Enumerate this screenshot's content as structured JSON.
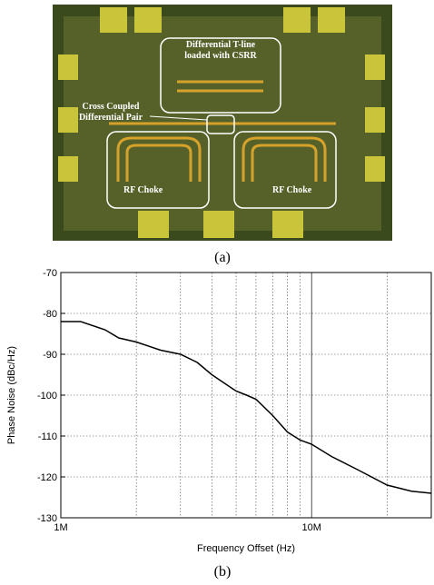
{
  "micrograph": {
    "labels": [
      "Differential T-line",
      "loaded with CSRR",
      "Cross Coupled",
      "Differential Pair",
      "RF Choke",
      "RF Choke"
    ],
    "caption": "(a)"
  },
  "chart_data": {
    "type": "line",
    "xlabel": "Frequency Offset (Hz)",
    "ylabel": "Phase Noise (dBc/Hz)",
    "caption": "(b)",
    "log_x": true,
    "xlim": [
      1000000,
      30000000
    ],
    "xticks": [
      {
        "value": 1000000,
        "label": "1M"
      },
      {
        "value": 10000000,
        "label": "10M"
      }
    ],
    "minor_xticks": [
      2000000,
      3000000,
      4000000,
      5000000,
      6000000,
      7000000,
      8000000,
      9000000,
      20000000
    ],
    "ylim": [
      -130,
      -70
    ],
    "yticks": [
      -130,
      -120,
      -110,
      -100,
      -90,
      -80,
      -70
    ],
    "grid": true,
    "x": [
      1000000,
      1200000,
      1500000,
      1700000,
      2000000,
      2500000,
      3000000,
      3500000,
      4000000,
      5000000,
      5500000,
      6000000,
      7000000,
      8000000,
      9000000,
      10000000,
      12000000,
      15000000,
      20000000,
      25000000,
      30000000
    ],
    "series": [
      {
        "color": "#000000",
        "values": [
          -82,
          -82,
          -84,
          -86,
          -87,
          -89,
          -90,
          -92,
          -95,
          -99,
          -100,
          -101,
          -105,
          -109,
          -111,
          -112,
          -115,
          -118,
          -122,
          -123.5,
          -124
        ]
      }
    ]
  }
}
